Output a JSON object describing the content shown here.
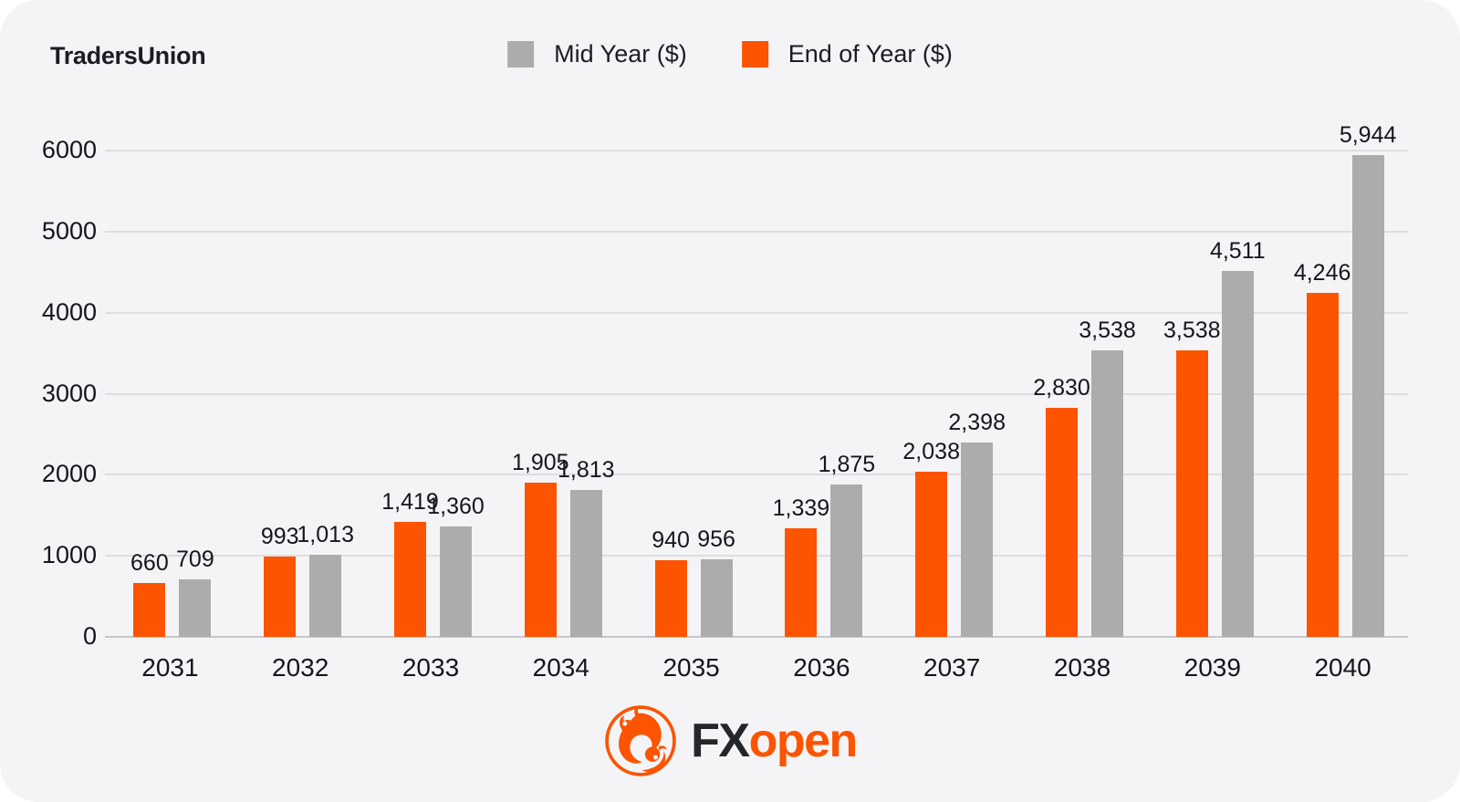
{
  "brand": {
    "name": "TradersUnion"
  },
  "legend": [
    {
      "label": "Mid Year ($)",
      "color": "#ACACAC",
      "series": "mid_year"
    },
    {
      "label": "End of Year ($)",
      "color": "#FC5400",
      "series": "end_of_year"
    }
  ],
  "footer": {
    "logo_fx": "FX",
    "logo_open": "open"
  },
  "colors": {
    "card_background": "#F4F4F6",
    "page_background": "#FFFFFF",
    "accent_orange": "#FC5400",
    "bar_gray": "#ACACAC",
    "text_dark": "#15151D",
    "gridline": "#DEDEE2",
    "baseline": "#C7C7CC"
  },
  "chart_data": {
    "type": "bar",
    "title": "",
    "xlabel": "",
    "ylabel": "",
    "categories": [
      "2031",
      "2032",
      "2033",
      "2034",
      "2035",
      "2036",
      "2037",
      "2038",
      "2039",
      "2040"
    ],
    "series": [
      {
        "name": "End of Year ($)",
        "color": "#FC5400",
        "values": [
          660,
          993,
          1419,
          1905,
          940,
          1339,
          2038,
          2830,
          3538,
          4246
        ],
        "labels": [
          "660",
          "993",
          "1,419",
          "1,905",
          "940",
          "1,339",
          "2,038",
          "2,830",
          "3,538",
          "4,246"
        ]
      },
      {
        "name": "Mid Year ($)",
        "color": "#ACACAC",
        "values": [
          709,
          1013,
          1360,
          1813,
          956,
          1875,
          2398,
          3538,
          4511,
          5944
        ],
        "labels": [
          "709",
          "1,013",
          "1,360",
          "1,813",
          "956",
          "1,875",
          "2,398",
          "3,538",
          "4,511",
          "5,944"
        ]
      }
    ],
    "bar_order_note": "End of Year (orange) drawn left of Mid Year (gray) in each pair",
    "ylim": [
      0,
      6000
    ],
    "yticks": [
      {
        "value": 0,
        "label": "0"
      },
      {
        "value": 1000,
        "label": "1000"
      },
      {
        "value": 2000,
        "label": "2000"
      },
      {
        "value": 3000,
        "label": "3000"
      },
      {
        "value": 4000,
        "label": "4000"
      },
      {
        "value": 5000,
        "label": "5000"
      },
      {
        "value": 6000,
        "label": "6000"
      }
    ],
    "grid": true,
    "legend_position": "top-center",
    "value_labels": "above bars"
  }
}
